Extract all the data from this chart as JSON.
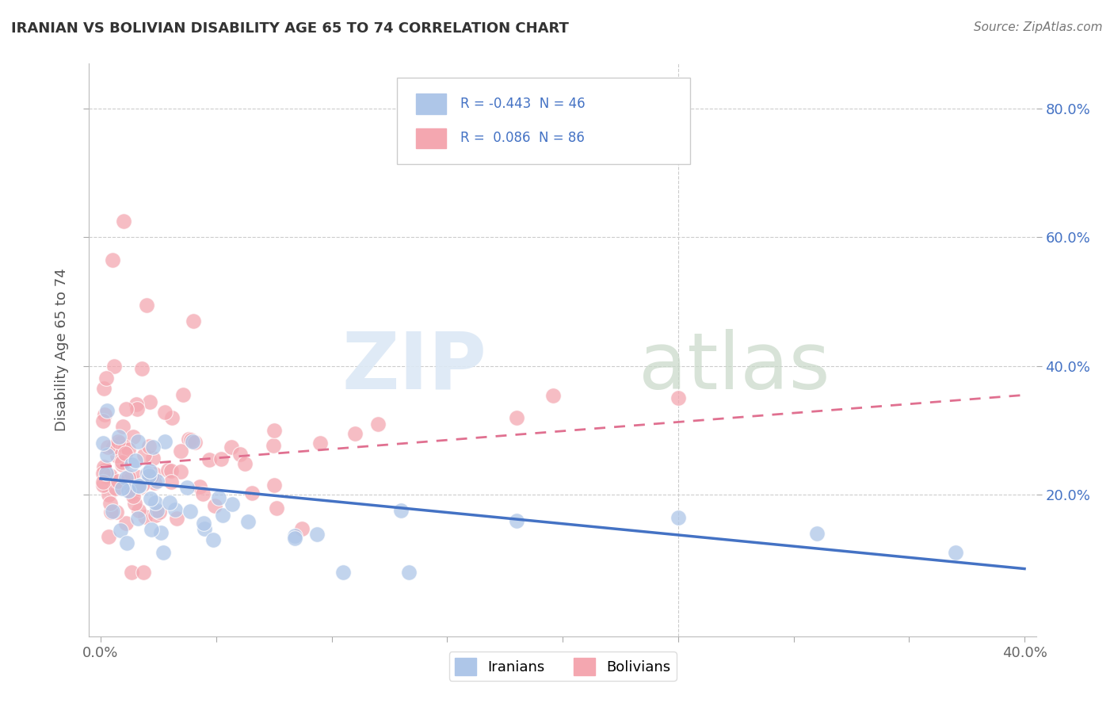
{
  "title": "IRANIAN VS BOLIVIAN DISABILITY AGE 65 TO 74 CORRELATION CHART",
  "source_text": "Source: ZipAtlas.com",
  "ylabel": "Disability Age 65 to 74",
  "xlim": [
    -0.005,
    0.405
  ],
  "ylim": [
    -0.02,
    0.87
  ],
  "x_ticks": [
    0.0,
    0.05,
    0.1,
    0.15,
    0.2,
    0.25,
    0.3,
    0.35,
    0.4
  ],
  "x_tick_labels": [
    "0.0%",
    "",
    "",
    "",
    "",
    "",
    "",
    "",
    "40.0%"
  ],
  "y_ticks_right": [
    0.2,
    0.4,
    0.6,
    0.8
  ],
  "y_tick_labels_right": [
    "20.0%",
    "40.0%",
    "60.0%",
    "80.0%"
  ],
  "legend_iranian_R": "-0.443",
  "legend_iranian_N": "46",
  "legend_bolivian_R": "0.086",
  "legend_bolivian_N": "86",
  "iranian_color": "#aec6e8",
  "bolivian_color": "#f4a7b0",
  "iranian_line_color": "#4472c4",
  "bolivian_line_color": "#e07090",
  "grid_color": "#cccccc",
  "text_color": "#4472c4",
  "title_color": "#333333",
  "source_color": "#777777",
  "iranian_trend_x0": 0.0,
  "iranian_trend_y0": 0.225,
  "iranian_trend_x1": 0.4,
  "iranian_trend_y1": 0.085,
  "bolivian_trend_x0": 0.0,
  "bolivian_trend_y0": 0.243,
  "bolivian_trend_x1": 0.4,
  "bolivian_trend_y1": 0.355,
  "watermark_zip_color": "#dce8f5",
  "watermark_atlas_color": "#c8d8c8"
}
